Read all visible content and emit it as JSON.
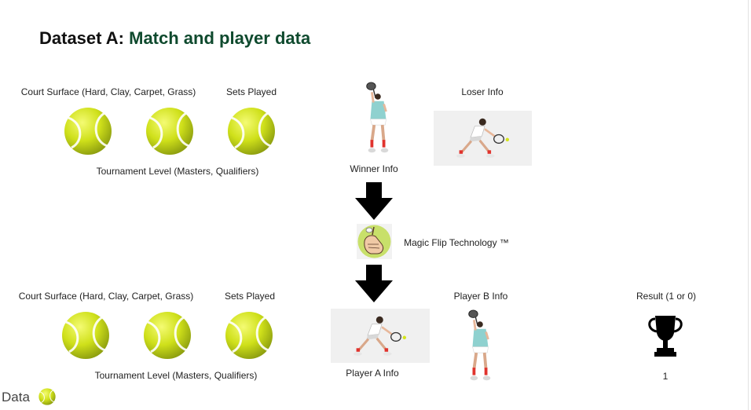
{
  "title": {
    "prefix": "Dataset A:",
    "main": "Match and player data"
  },
  "top_row": {
    "court_surface_label": "Court Surface (Hard, Clay, Carpet, Grass)",
    "sets_played_label": "Sets Played",
    "tournament_level_label": "Tournament Level (Masters, Qualifiers)",
    "winner_label": "Winner Info",
    "loser_label": "Loser Info"
  },
  "flip": {
    "label": "Magic Flip Technology ™"
  },
  "bottom_row": {
    "court_surface_label": "Court Surface (Hard, Clay, Carpet, Grass)",
    "sets_played_label": "Sets Played",
    "tournament_level_label": "Tournament Level (Masters, Qualifiers)",
    "player_a_label": "Player A Info",
    "player_b_label": "Player B Info",
    "result_label": "Result (1 or 0)",
    "result_value": "1"
  },
  "legend": {
    "label": "Data",
    "icon": "tennis-ball-icon"
  },
  "colors": {
    "title_accent": "#0f4a2e",
    "ball": "#d4e41a",
    "arrow": "#000000"
  }
}
